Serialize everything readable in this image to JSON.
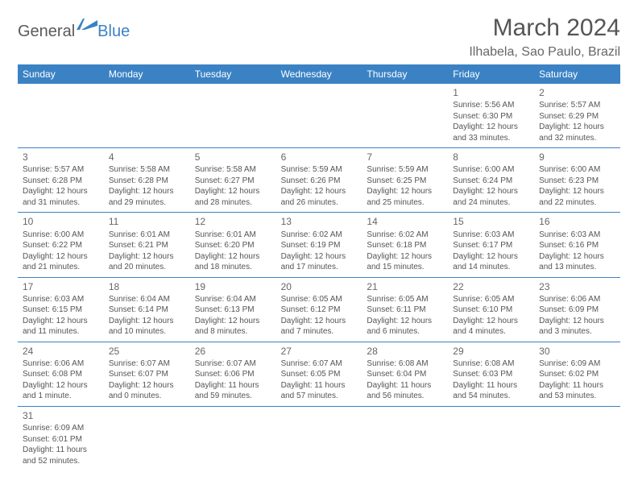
{
  "logo": {
    "word1": "General",
    "word2": "Blue"
  },
  "title": "March 2024",
  "location": "Ilhabela, Sao Paulo, Brazil",
  "colors": {
    "header_bg": "#3b82c4",
    "header_text": "#ffffff",
    "text": "#555555",
    "divider": "#3b82c4",
    "background": "#ffffff"
  },
  "weekdays": [
    "Sunday",
    "Monday",
    "Tuesday",
    "Wednesday",
    "Thursday",
    "Friday",
    "Saturday"
  ],
  "weeks": [
    [
      null,
      null,
      null,
      null,
      null,
      {
        "n": "1",
        "sunrise": "5:56 AM",
        "sunset": "6:30 PM",
        "daylight": "12 hours and 33 minutes."
      },
      {
        "n": "2",
        "sunrise": "5:57 AM",
        "sunset": "6:29 PM",
        "daylight": "12 hours and 32 minutes."
      }
    ],
    [
      {
        "n": "3",
        "sunrise": "5:57 AM",
        "sunset": "6:28 PM",
        "daylight": "12 hours and 31 minutes."
      },
      {
        "n": "4",
        "sunrise": "5:58 AM",
        "sunset": "6:28 PM",
        "daylight": "12 hours and 29 minutes."
      },
      {
        "n": "5",
        "sunrise": "5:58 AM",
        "sunset": "6:27 PM",
        "daylight": "12 hours and 28 minutes."
      },
      {
        "n": "6",
        "sunrise": "5:59 AM",
        "sunset": "6:26 PM",
        "daylight": "12 hours and 26 minutes."
      },
      {
        "n": "7",
        "sunrise": "5:59 AM",
        "sunset": "6:25 PM",
        "daylight": "12 hours and 25 minutes."
      },
      {
        "n": "8",
        "sunrise": "6:00 AM",
        "sunset": "6:24 PM",
        "daylight": "12 hours and 24 minutes."
      },
      {
        "n": "9",
        "sunrise": "6:00 AM",
        "sunset": "6:23 PM",
        "daylight": "12 hours and 22 minutes."
      }
    ],
    [
      {
        "n": "10",
        "sunrise": "6:00 AM",
        "sunset": "6:22 PM",
        "daylight": "12 hours and 21 minutes."
      },
      {
        "n": "11",
        "sunrise": "6:01 AM",
        "sunset": "6:21 PM",
        "daylight": "12 hours and 20 minutes."
      },
      {
        "n": "12",
        "sunrise": "6:01 AM",
        "sunset": "6:20 PM",
        "daylight": "12 hours and 18 minutes."
      },
      {
        "n": "13",
        "sunrise": "6:02 AM",
        "sunset": "6:19 PM",
        "daylight": "12 hours and 17 minutes."
      },
      {
        "n": "14",
        "sunrise": "6:02 AM",
        "sunset": "6:18 PM",
        "daylight": "12 hours and 15 minutes."
      },
      {
        "n": "15",
        "sunrise": "6:03 AM",
        "sunset": "6:17 PM",
        "daylight": "12 hours and 14 minutes."
      },
      {
        "n": "16",
        "sunrise": "6:03 AM",
        "sunset": "6:16 PM",
        "daylight": "12 hours and 13 minutes."
      }
    ],
    [
      {
        "n": "17",
        "sunrise": "6:03 AM",
        "sunset": "6:15 PM",
        "daylight": "12 hours and 11 minutes."
      },
      {
        "n": "18",
        "sunrise": "6:04 AM",
        "sunset": "6:14 PM",
        "daylight": "12 hours and 10 minutes."
      },
      {
        "n": "19",
        "sunrise": "6:04 AM",
        "sunset": "6:13 PM",
        "daylight": "12 hours and 8 minutes."
      },
      {
        "n": "20",
        "sunrise": "6:05 AM",
        "sunset": "6:12 PM",
        "daylight": "12 hours and 7 minutes."
      },
      {
        "n": "21",
        "sunrise": "6:05 AM",
        "sunset": "6:11 PM",
        "daylight": "12 hours and 6 minutes."
      },
      {
        "n": "22",
        "sunrise": "6:05 AM",
        "sunset": "6:10 PM",
        "daylight": "12 hours and 4 minutes."
      },
      {
        "n": "23",
        "sunrise": "6:06 AM",
        "sunset": "6:09 PM",
        "daylight": "12 hours and 3 minutes."
      }
    ],
    [
      {
        "n": "24",
        "sunrise": "6:06 AM",
        "sunset": "6:08 PM",
        "daylight": "12 hours and 1 minute."
      },
      {
        "n": "25",
        "sunrise": "6:07 AM",
        "sunset": "6:07 PM",
        "daylight": "12 hours and 0 minutes."
      },
      {
        "n": "26",
        "sunrise": "6:07 AM",
        "sunset": "6:06 PM",
        "daylight": "11 hours and 59 minutes."
      },
      {
        "n": "27",
        "sunrise": "6:07 AM",
        "sunset": "6:05 PM",
        "daylight": "11 hours and 57 minutes."
      },
      {
        "n": "28",
        "sunrise": "6:08 AM",
        "sunset": "6:04 PM",
        "daylight": "11 hours and 56 minutes."
      },
      {
        "n": "29",
        "sunrise": "6:08 AM",
        "sunset": "6:03 PM",
        "daylight": "11 hours and 54 minutes."
      },
      {
        "n": "30",
        "sunrise": "6:09 AM",
        "sunset": "6:02 PM",
        "daylight": "11 hours and 53 minutes."
      }
    ],
    [
      {
        "n": "31",
        "sunrise": "6:09 AM",
        "sunset": "6:01 PM",
        "daylight": "11 hours and 52 minutes."
      },
      null,
      null,
      null,
      null,
      null,
      null
    ]
  ],
  "labels": {
    "sunrise": "Sunrise: ",
    "sunset": "Sunset: ",
    "daylight": "Daylight: "
  }
}
